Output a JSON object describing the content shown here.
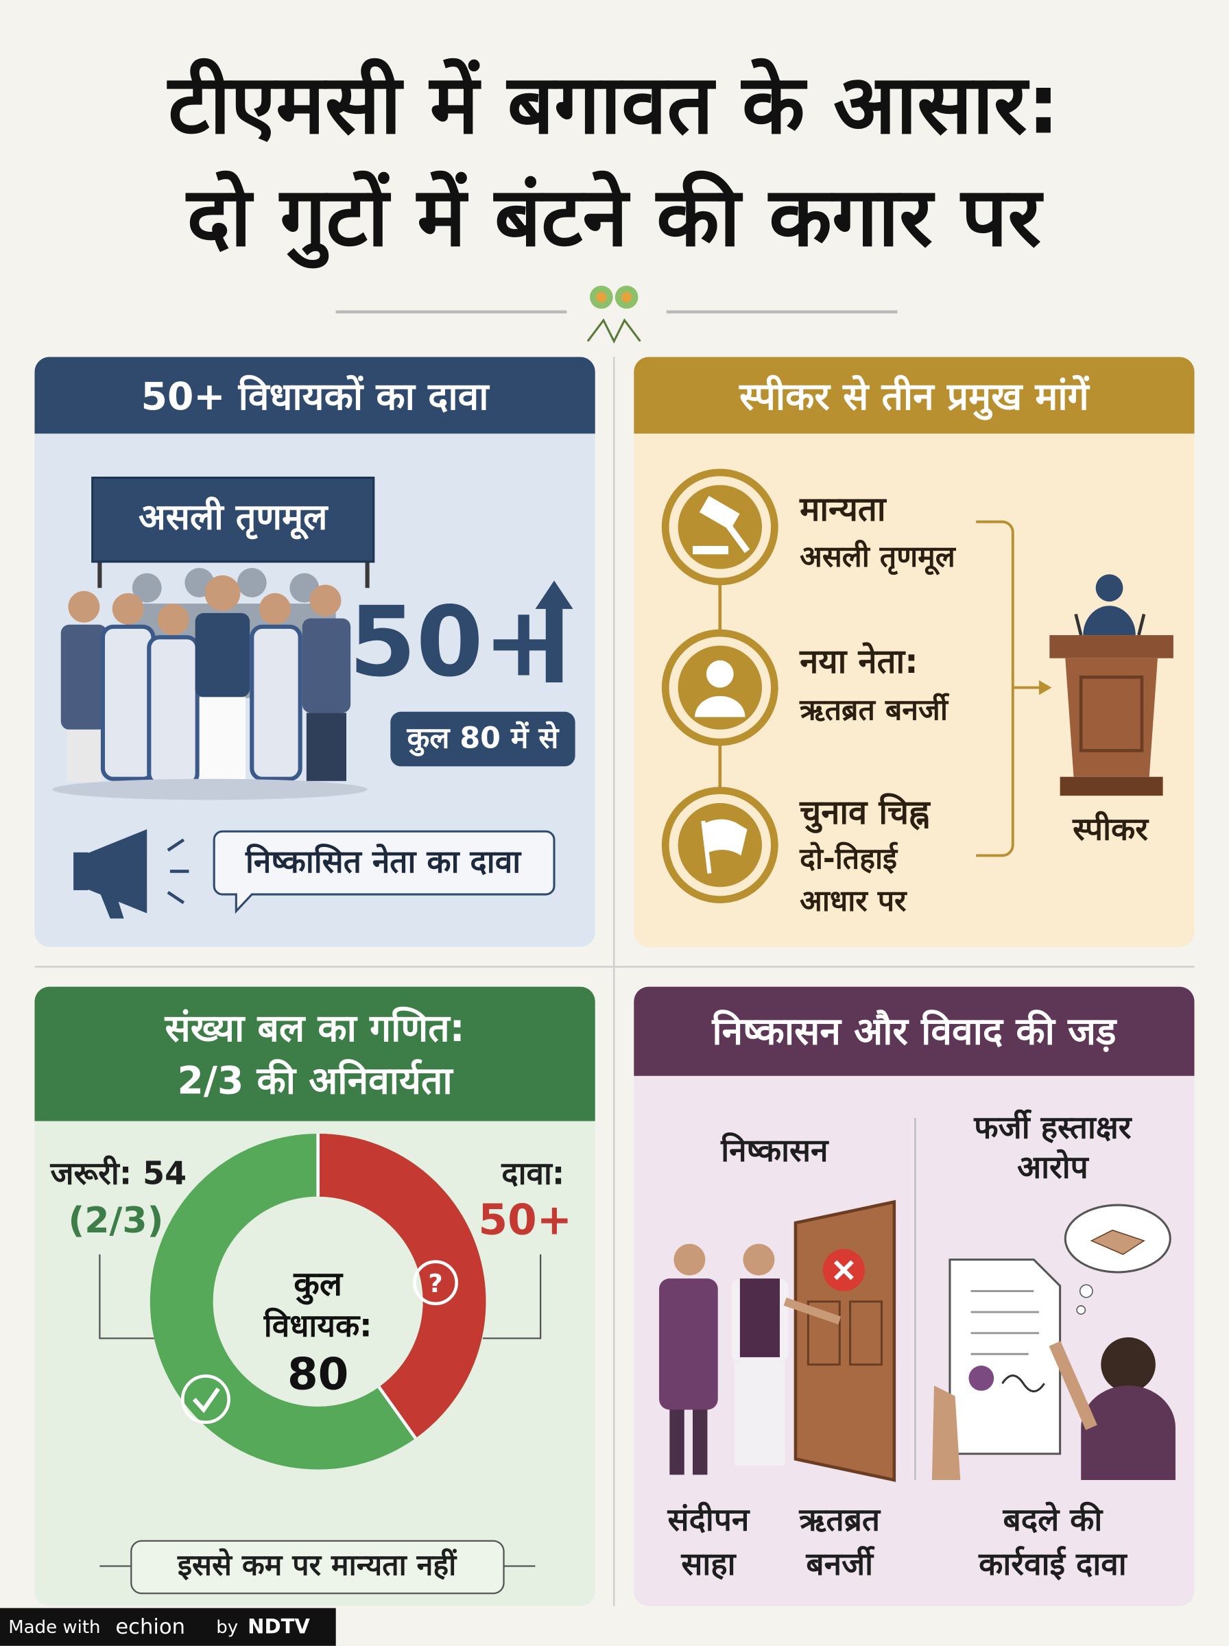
{
  "title": [
    "टीएमसी में बगावत के आसार:",
    "दो गुटों में बंटने की कगार पर"
  ],
  "claim_panel": {
    "heading": "50+ विधायकों का दावा",
    "banner": "असली तृणमूल",
    "figure": "50+",
    "figure_note": "कुल 80 में से",
    "callout": "निष्कासित नेता का दावा"
  },
  "demands_panel": {
    "heading": "स्पीकर से तीन प्रमुख मांगें",
    "items": [
      {
        "title": "मान्यता",
        "text": [
          "असली तृणमूल"
        ]
      },
      {
        "title": "नया नेता:",
        "text": [
          "ऋतब्रत बनर्जी"
        ]
      },
      {
        "title": "चुनाव चिह्न",
        "text": [
          "दो-तिहाई",
          "आधार पर"
        ]
      }
    ],
    "target": "स्पीकर"
  },
  "math_panel": {
    "heading": [
      "संख्या बल का गणित:",
      "2/3 की अनिवार्यता"
    ],
    "required_label": "जरूरी: 54",
    "required_fraction": "(2/3)",
    "claim_label": "दावा:",
    "claim_value": "50+",
    "center": [
      "कुल",
      "विधायक:",
      "80"
    ],
    "footer": "इससे कम पर मान्यता नहीं"
  },
  "expulsion_panel": {
    "heading": "निष्कासन और विवाद की जड़",
    "left_title": "निष्कासन",
    "right_title": [
      "फर्जी हस्ताक्षर",
      "आरोप"
    ],
    "people": [
      [
        "संदीपन",
        "साहा"
      ],
      [
        "ऋतब्रत",
        "बनर्जी"
      ]
    ],
    "right_caption": [
      "बदले की",
      "कार्रवाई दावा"
    ]
  },
  "footer": {
    "made_with": "Made with",
    "brand": "echion",
    "by": "by",
    "partner": "NDTV"
  }
}
